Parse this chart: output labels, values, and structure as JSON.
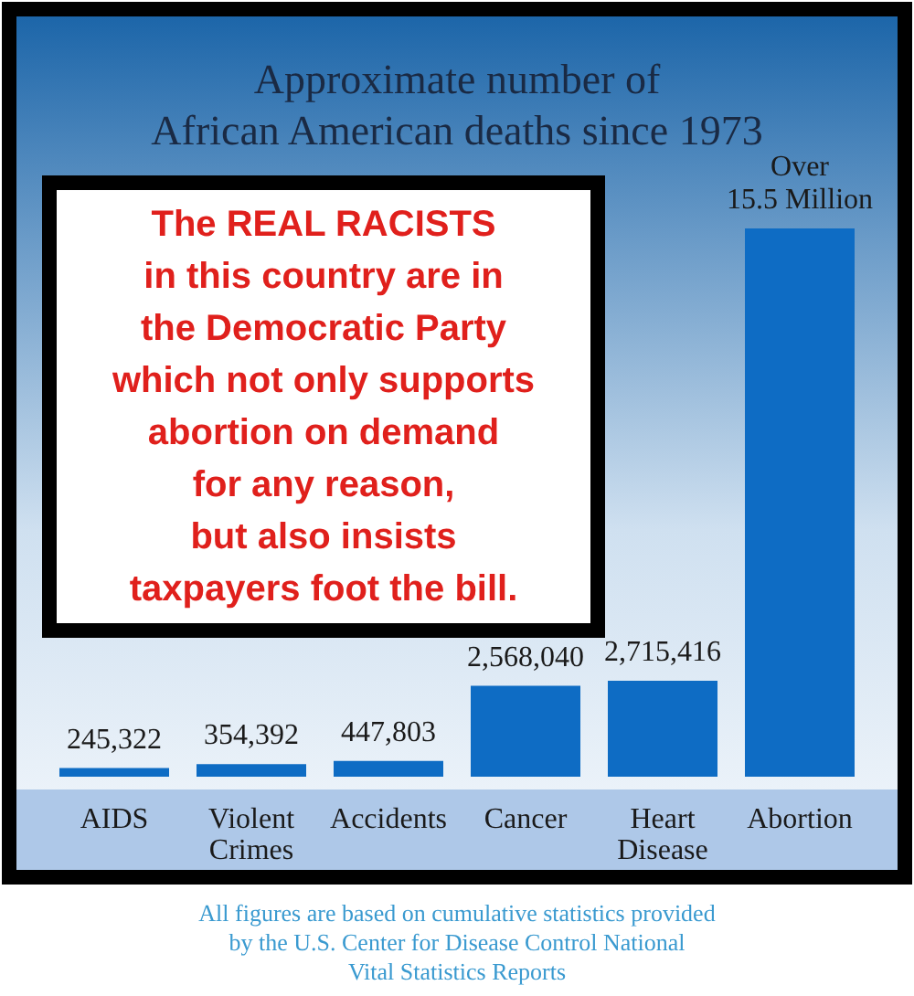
{
  "chart_data": {
    "type": "bar",
    "title": "Approximate number of\nAfrican American deaths since 1973",
    "categories": [
      "AIDS",
      "Violent\nCrimes",
      "Accidents",
      "Cancer",
      "Heart\nDisease",
      "Abortion"
    ],
    "values": [
      245322,
      354392,
      447803,
      2568040,
      2715416,
      15500000
    ],
    "value_labels": [
      "245,322",
      "354,392",
      "447,803",
      "2,568,040",
      "2,715,416",
      "Over\n15.5 Million"
    ],
    "color": "#0e6cc4",
    "annotations": [
      "The REAL RACISTS\nin this country are in\nthe Democratic Party\nwhich not only supports\nabortion on demand\nfor any reason,\nbut also insists\ntaxpayers foot the bill.",
      "All figures are based on cumulative statistics provided\nby the U.S. Center for Disease Control National\nVital Statistics Reports"
    ]
  }
}
